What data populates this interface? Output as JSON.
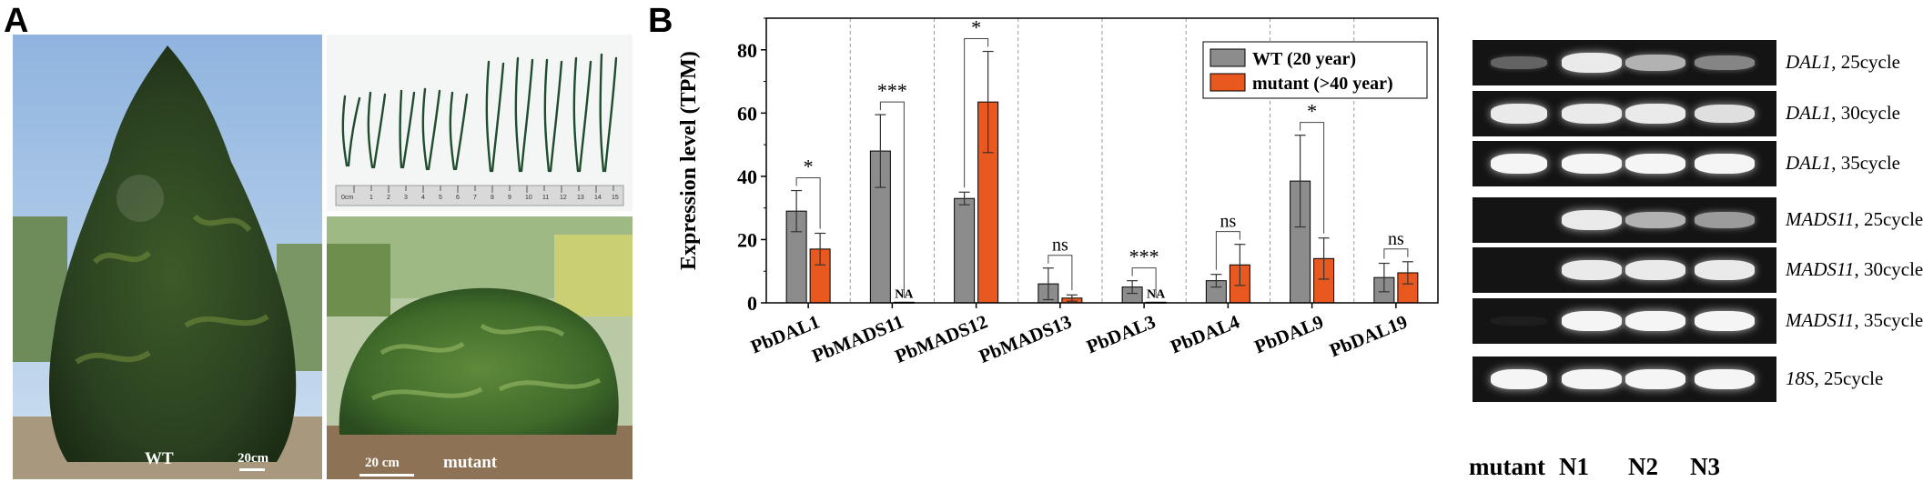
{
  "panel_a": {
    "letter": "A",
    "wt_label": "WT",
    "wt_scale": "20cm",
    "ruler_unit_label": "0cm",
    "ruler_numbers": [
      "1",
      "2",
      "3",
      "4",
      "5",
      "6",
      "7",
      "8",
      "9",
      "10",
      "11",
      "12",
      "13",
      "14",
      "15"
    ],
    "mutant_scale": "20 cm",
    "mutant_label": "mutant"
  },
  "panel_b": {
    "letter": "B",
    "chart_data": {
      "type": "bar",
      "ylabel": "Expression level (TPM)",
      "xlabel": "",
      "ylim": [
        0,
        90
      ],
      "yticks": [
        0,
        20,
        40,
        60,
        80
      ],
      "categories": [
        "PbDAL1",
        "PbMADS11",
        "PbMADS12",
        "PbMADS13",
        "PbDAL3",
        "PbDAL4",
        "PbDAL9",
        "PbDAL19"
      ],
      "series": [
        {
          "name": "WT (20 year)",
          "color": "#8c8c8c",
          "values": [
            29,
            48,
            33,
            6,
            5,
            7,
            38.5,
            8
          ],
          "errors": [
            6.5,
            11.5,
            2,
            5,
            2,
            2,
            14.5,
            4.5
          ]
        },
        {
          "name": "mutant (>40 year)",
          "color": "#e8581f",
          "values": [
            17,
            0.2,
            63.5,
            1.5,
            0.2,
            12,
            14,
            9.5
          ],
          "errors": [
            5,
            0,
            16,
            1,
            0,
            6.5,
            6.5,
            3.5
          ]
        }
      ],
      "significance": [
        "*",
        "***",
        "*",
        "ns",
        "***",
        "ns",
        "*",
        "ns"
      ],
      "na_labels": [
        "",
        "NA",
        "",
        "",
        "NA",
        "",
        "",
        ""
      ],
      "legend_position": "top-right"
    }
  },
  "gel": {
    "rows": [
      {
        "gene": "DAL1",
        "suffix": ", 25cycle",
        "lanes": [
          0.35,
          0.95,
          0.7,
          0.5
        ]
      },
      {
        "gene": "DAL1",
        "suffix": ", 30cycle",
        "lanes": [
          0.95,
          0.95,
          0.95,
          0.9
        ]
      },
      {
        "gene": "DAL1",
        "suffix": ", 35cycle",
        "lanes": [
          1,
          1,
          1,
          1
        ]
      },
      {
        "gene": "MADS11",
        "suffix": ", 25cycle",
        "lanes": [
          0,
          0.95,
          0.7,
          0.6
        ]
      },
      {
        "gene": "MADS11",
        "suffix": ", 30cycle",
        "lanes": [
          0,
          0.95,
          0.95,
          0.95
        ]
      },
      {
        "gene": "MADS11",
        "suffix": ", 35cycle",
        "lanes": [
          0.05,
          1,
          1,
          1
        ]
      },
      {
        "gene": "18S",
        "suffix": ", 25cycle",
        "lanes": [
          1,
          1,
          1,
          1
        ]
      }
    ],
    "lanes": [
      "mutant",
      "N1",
      "N2",
      "N3"
    ]
  },
  "colors": {
    "wt": "#8c8c8c",
    "mutant": "#e8581f"
  }
}
